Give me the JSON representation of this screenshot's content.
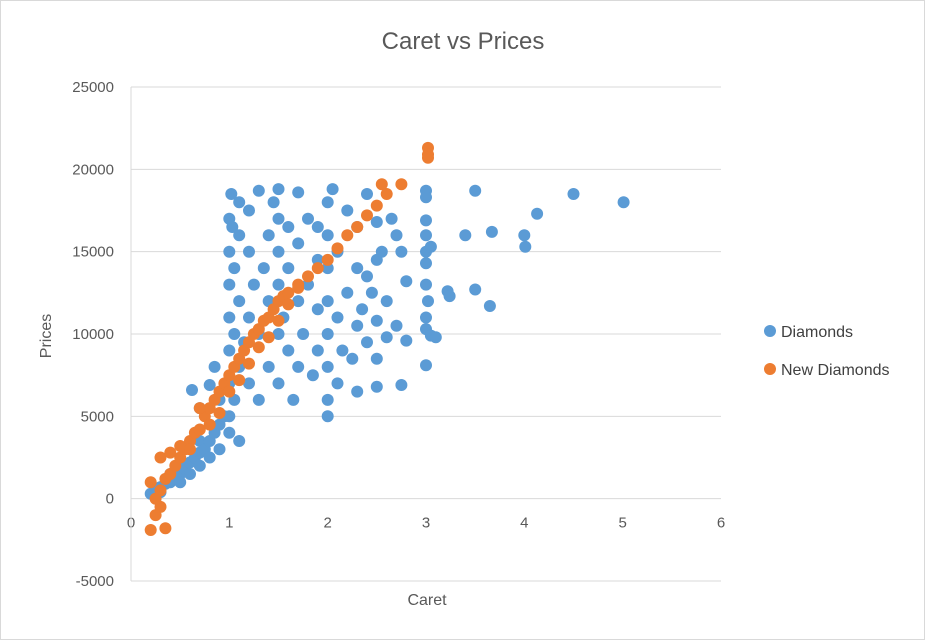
{
  "chart_data": {
    "type": "scatter",
    "title": "Caret vs Prices",
    "xlabel": "Caret",
    "ylabel": "Prices",
    "xlim": [
      0,
      6
    ],
    "ylim": [
      -5000,
      25000
    ],
    "x_ticks": [
      "0",
      "1",
      "2",
      "3",
      "4",
      "5",
      "6"
    ],
    "y_ticks": [
      "-5000",
      "0",
      "5000",
      "10000",
      "15000",
      "20000",
      "25000"
    ],
    "grid": "horizontal",
    "legend_position": "right",
    "series": [
      {
        "name": "Diamonds",
        "color": "#5B9BD5",
        "points": [
          [
            0.2,
            300
          ],
          [
            0.25,
            500
          ],
          [
            0.3,
            700
          ],
          [
            0.3,
            400
          ],
          [
            0.35,
            900
          ],
          [
            0.4,
            1000
          ],
          [
            0.4,
            1500
          ],
          [
            0.45,
            1200
          ],
          [
            0.5,
            1500
          ],
          [
            0.5,
            2000
          ],
          [
            0.5,
            1000
          ],
          [
            0.55,
            1800
          ],
          [
            0.6,
            2200
          ],
          [
            0.6,
            1500
          ],
          [
            0.65,
            2500
          ],
          [
            0.7,
            2800
          ],
          [
            0.7,
            2000
          ],
          [
            0.7,
            3500
          ],
          [
            0.75,
            3000
          ],
          [
            0.8,
            3500
          ],
          [
            0.8,
            2500
          ],
          [
            0.85,
            4000
          ],
          [
            0.9,
            4500
          ],
          [
            0.9,
            3000
          ],
          [
            0.9,
            6000
          ],
          [
            0.95,
            5000
          ],
          [
            0.62,
            6600
          ],
          [
            0.7,
            5500
          ],
          [
            0.8,
            6900
          ],
          [
            0.85,
            8000
          ],
          [
            1.0,
            5000
          ],
          [
            1.0,
            7000
          ],
          [
            1.0,
            4000
          ],
          [
            1.0,
            9000
          ],
          [
            1.0,
            11000
          ],
          [
            1.0,
            13000
          ],
          [
            1.0,
            15000
          ],
          [
            1.0,
            17000
          ],
          [
            1.02,
            18500
          ],
          [
            1.03,
            16500
          ],
          [
            1.05,
            6000
          ],
          [
            1.05,
            10000
          ],
          [
            1.05,
            14000
          ],
          [
            1.1,
            8000
          ],
          [
            1.1,
            12000
          ],
          [
            1.1,
            16000
          ],
          [
            1.1,
            3500
          ],
          [
            1.1,
            18000
          ],
          [
            1.15,
            9500
          ],
          [
            1.2,
            11000
          ],
          [
            1.2,
            7000
          ],
          [
            1.2,
            15000
          ],
          [
            1.2,
            17500
          ],
          [
            1.25,
            13000
          ],
          [
            1.3,
            6000
          ],
          [
            1.3,
            10000
          ],
          [
            1.3,
            18700
          ],
          [
            1.35,
            14000
          ],
          [
            1.4,
            8000
          ],
          [
            1.4,
            12000
          ],
          [
            1.4,
            16000
          ],
          [
            1.45,
            18000
          ],
          [
            1.5,
            7000
          ],
          [
            1.5,
            10000
          ],
          [
            1.5,
            13000
          ],
          [
            1.5,
            15000
          ],
          [
            1.5,
            17000
          ],
          [
            1.5,
            18800
          ],
          [
            1.55,
            11000
          ],
          [
            1.6,
            9000
          ],
          [
            1.6,
            14000
          ],
          [
            1.6,
            16500
          ],
          [
            1.65,
            6000
          ],
          [
            1.7,
            8000
          ],
          [
            1.7,
            12000
          ],
          [
            1.7,
            15500
          ],
          [
            1.7,
            18600
          ],
          [
            1.75,
            10000
          ],
          [
            1.8,
            13000
          ],
          [
            1.8,
            17000
          ],
          [
            1.85,
            7500
          ],
          [
            1.9,
            9000
          ],
          [
            1.9,
            11500
          ],
          [
            1.9,
            14500
          ],
          [
            1.9,
            16500
          ],
          [
            2.0,
            5000
          ],
          [
            2.0,
            6000
          ],
          [
            2.0,
            8000
          ],
          [
            2.0,
            10000
          ],
          [
            2.0,
            12000
          ],
          [
            2.0,
            14000
          ],
          [
            2.0,
            16000
          ],
          [
            2.0,
            18000
          ],
          [
            2.05,
            18800
          ],
          [
            2.1,
            7000
          ],
          [
            2.1,
            11000
          ],
          [
            2.1,
            15000
          ],
          [
            2.15,
            9000
          ],
          [
            2.2,
            12500
          ],
          [
            2.2,
            17500
          ],
          [
            2.25,
            8500
          ],
          [
            2.3,
            6500
          ],
          [
            2.3,
            10500
          ],
          [
            2.3,
            14000
          ],
          [
            2.3,
            16500
          ],
          [
            2.35,
            11500
          ],
          [
            2.4,
            9500
          ],
          [
            2.4,
            13500
          ],
          [
            2.4,
            18500
          ],
          [
            2.45,
            12500
          ],
          [
            2.5,
            6800
          ],
          [
            2.5,
            8500
          ],
          [
            2.5,
            10800
          ],
          [
            2.5,
            14500
          ],
          [
            2.5,
            16800
          ],
          [
            2.55,
            15000
          ],
          [
            2.6,
            9800
          ],
          [
            2.6,
            12000
          ],
          [
            2.65,
            17000
          ],
          [
            2.7,
            10500
          ],
          [
            2.7,
            16000
          ],
          [
            2.75,
            15000
          ],
          [
            2.75,
            6900
          ],
          [
            2.8,
            13200
          ],
          [
            2.8,
            9600
          ],
          [
            3.0,
            18700
          ],
          [
            3.0,
            18300
          ],
          [
            3.0,
            16900
          ],
          [
            3.0,
            16000
          ],
          [
            3.0,
            15000
          ],
          [
            3.0,
            14300
          ],
          [
            3.0,
            13000
          ],
          [
            3.0,
            11000
          ],
          [
            3.0,
            10300
          ],
          [
            3.0,
            8100
          ],
          [
            3.02,
            12000
          ],
          [
            3.05,
            15300
          ],
          [
            3.05,
            9900
          ],
          [
            3.1,
            9800
          ],
          [
            3.22,
            12600
          ],
          [
            3.24,
            12300
          ],
          [
            3.4,
            16000
          ],
          [
            3.5,
            18700
          ],
          [
            3.5,
            12700
          ],
          [
            3.65,
            11700
          ],
          [
            3.67,
            16200
          ],
          [
            4.0,
            16000
          ],
          [
            4.01,
            15300
          ],
          [
            4.13,
            17300
          ],
          [
            4.5,
            18500
          ],
          [
            5.01,
            18000
          ]
        ]
      },
      {
        "name": "New Diamonds",
        "color": "#ED7D31",
        "points": [
          [
            0.2,
            -1900
          ],
          [
            0.25,
            -1000
          ],
          [
            0.3,
            -500
          ],
          [
            0.35,
            -1800
          ],
          [
            0.2,
            1000
          ],
          [
            0.25,
            0
          ],
          [
            0.3,
            500
          ],
          [
            0.35,
            1200
          ],
          [
            0.4,
            1500
          ],
          [
            0.45,
            2000
          ],
          [
            0.5,
            2500
          ],
          [
            0.55,
            3000
          ],
          [
            0.6,
            3500
          ],
          [
            0.65,
            4000
          ],
          [
            0.7,
            4200
          ],
          [
            0.75,
            5000
          ],
          [
            0.8,
            5500
          ],
          [
            0.85,
            6000
          ],
          [
            0.9,
            6500
          ],
          [
            0.95,
            7000
          ],
          [
            1.0,
            7500
          ],
          [
            1.05,
            8000
          ],
          [
            1.1,
            8500
          ],
          [
            1.15,
            9000
          ],
          [
            1.2,
            9500
          ],
          [
            1.25,
            10000
          ],
          [
            1.3,
            10300
          ],
          [
            1.35,
            10800
          ],
          [
            1.4,
            11000
          ],
          [
            1.45,
            11500
          ],
          [
            1.5,
            12000
          ],
          [
            1.55,
            12300
          ],
          [
            1.6,
            12500
          ],
          [
            1.7,
            13000
          ],
          [
            1.8,
            13500
          ],
          [
            1.9,
            14000
          ],
          [
            2.0,
            14500
          ],
          [
            2.1,
            15200
          ],
          [
            2.2,
            16000
          ],
          [
            2.3,
            16500
          ],
          [
            2.4,
            17200
          ],
          [
            2.5,
            17800
          ],
          [
            2.55,
            19100
          ],
          [
            2.6,
            18500
          ],
          [
            2.75,
            19100
          ],
          [
            3.02,
            21300
          ],
          [
            3.02,
            20900
          ],
          [
            3.02,
            20700
          ],
          [
            0.3,
            2500
          ],
          [
            0.4,
            2800
          ],
          [
            0.5,
            3200
          ],
          [
            0.6,
            3000
          ],
          [
            0.7,
            5500
          ],
          [
            0.8,
            4500
          ],
          [
            0.9,
            5200
          ],
          [
            1.0,
            6500
          ],
          [
            1.1,
            7200
          ],
          [
            1.2,
            8200
          ],
          [
            1.3,
            9200
          ],
          [
            1.4,
            9800
          ],
          [
            1.5,
            10800
          ],
          [
            1.6,
            11800
          ],
          [
            1.7,
            12800
          ]
        ]
      }
    ]
  }
}
